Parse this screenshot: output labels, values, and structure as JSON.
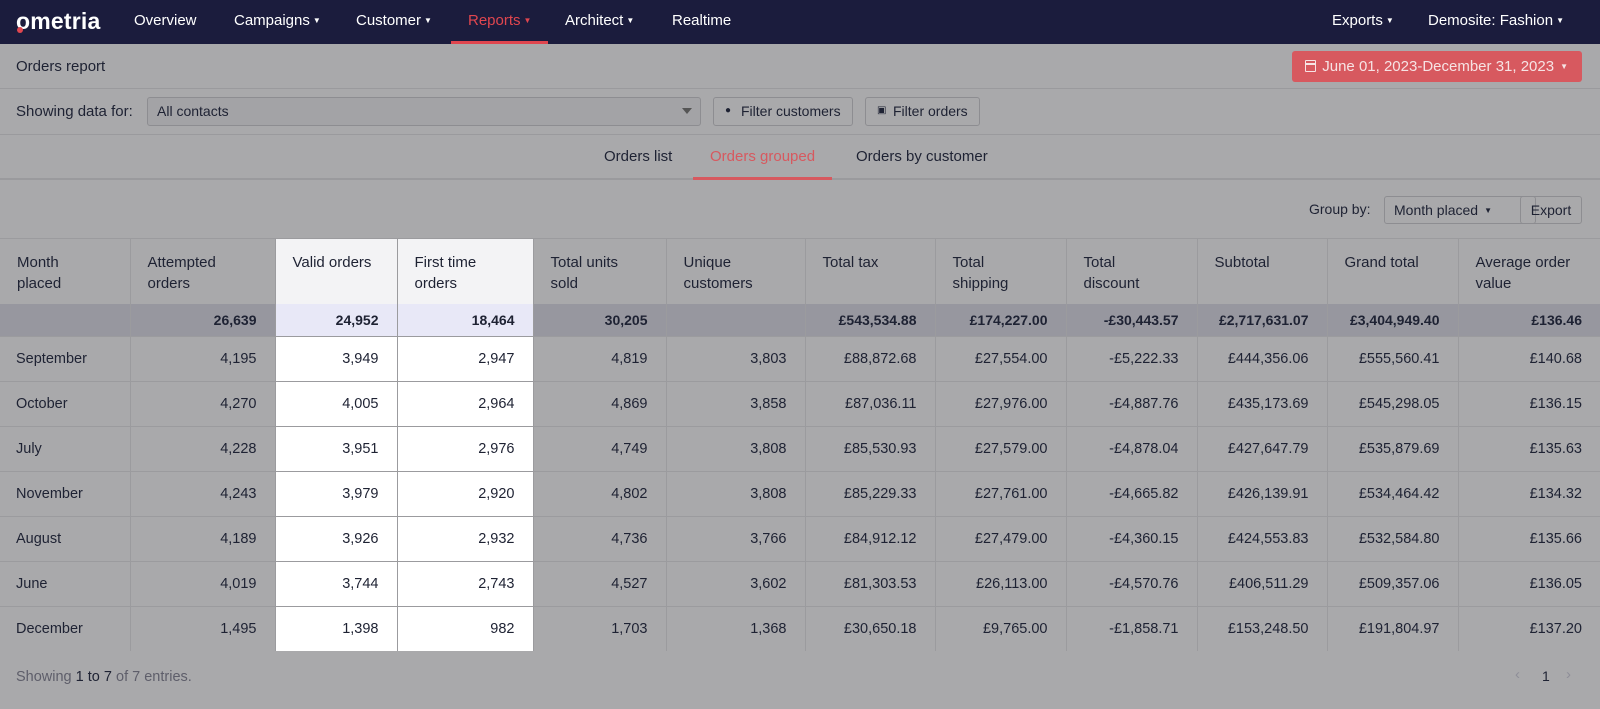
{
  "nav": {
    "logo": "ometria",
    "items": [
      {
        "label": "Overview",
        "caret": false
      },
      {
        "label": "Campaigns",
        "caret": true
      },
      {
        "label": "Customer",
        "caret": true
      },
      {
        "label": "Reports",
        "caret": true,
        "active": true
      },
      {
        "label": "Architect",
        "caret": true
      },
      {
        "label": "Realtime",
        "caret": false
      }
    ],
    "right": [
      {
        "label": "Exports",
        "caret": true
      },
      {
        "label": "Demosite: Fashion",
        "caret": true
      }
    ],
    "accent_color": "#e0464f",
    "background": "#1b1c3d"
  },
  "report": {
    "title": "Orders report",
    "date_range": "June 01, 2023-December 31, 2023"
  },
  "filters": {
    "label": "Showing data for:",
    "contacts_value": "All contacts",
    "filter_customers": "Filter customers",
    "filter_orders": "Filter orders"
  },
  "tabs": [
    {
      "label": "Orders list",
      "active": false
    },
    {
      "label": "Orders grouped",
      "active": true
    },
    {
      "label": "Orders by customer",
      "active": false
    }
  ],
  "toolbar": {
    "group_by_label": "Group by:",
    "group_by_value": "Month placed",
    "export_label": "Export"
  },
  "table": {
    "columns": [
      {
        "line1": "Month",
        "line2": "placed"
      },
      {
        "line1": "Attempted",
        "line2": "orders"
      },
      {
        "line1": "Valid orders",
        "line2": ""
      },
      {
        "line1": "First time",
        "line2": "orders"
      },
      {
        "line1": "Total units",
        "line2": "sold"
      },
      {
        "line1": "Unique",
        "line2": "customers"
      },
      {
        "line1": "Total tax",
        "line2": ""
      },
      {
        "line1": "Total",
        "line2": "shipping"
      },
      {
        "line1": "Total",
        "line2": "discount"
      },
      {
        "line1": "Subtotal",
        "line2": ""
      },
      {
        "line1": "Grand total",
        "line2": ""
      },
      {
        "line1": "Average order",
        "line2": "value"
      }
    ],
    "totals": [
      "",
      "26,639",
      "24,952",
      "18,464",
      "30,205",
      "",
      "£543,534.88",
      "£174,227.00",
      "-£30,443.57",
      "£2,717,631.07",
      "£3,404,949.40",
      "£136.46"
    ],
    "rows": [
      [
        "September",
        "4,195",
        "3,949",
        "2,947",
        "4,819",
        "3,803",
        "£88,872.68",
        "£27,554.00",
        "-£5,222.33",
        "£444,356.06",
        "£555,560.41",
        "£140.68"
      ],
      [
        "October",
        "4,270",
        "4,005",
        "2,964",
        "4,869",
        "3,858",
        "£87,036.11",
        "£27,976.00",
        "-£4,887.76",
        "£435,173.69",
        "£545,298.05",
        "£136.15"
      ],
      [
        "July",
        "4,228",
        "3,951",
        "2,976",
        "4,749",
        "3,808",
        "£85,530.93",
        "£27,579.00",
        "-£4,878.04",
        "£427,647.79",
        "£535,879.69",
        "£135.63"
      ],
      [
        "November",
        "4,243",
        "3,979",
        "2,920",
        "4,802",
        "3,808",
        "£85,229.33",
        "£27,761.00",
        "-£4,665.82",
        "£426,139.91",
        "£534,464.42",
        "£134.32"
      ],
      [
        "August",
        "4,189",
        "3,926",
        "2,932",
        "4,736",
        "3,766",
        "£84,912.12",
        "£27,479.00",
        "-£4,360.15",
        "£424,553.83",
        "£532,584.80",
        "£135.66"
      ],
      [
        "June",
        "4,019",
        "3,744",
        "2,743",
        "4,527",
        "3,602",
        "£81,303.53",
        "£26,113.00",
        "-£4,570.76",
        "£406,511.29",
        "£509,357.06",
        "£136.05"
      ],
      [
        "December",
        "1,495",
        "1,398",
        "982",
        "1,703",
        "1,368",
        "£30,650.18",
        "£9,765.00",
        "-£1,858.71",
        "£153,248.50",
        "£191,804.97",
        "£137.20"
      ]
    ]
  },
  "footer": {
    "showing_prefix": "Showing",
    "from": "1",
    "to_word": "to",
    "to": "7",
    "of_word": "of",
    "total": "7",
    "entries_word": "entries.",
    "current_page": "1",
    "prev_symbol": "‹",
    "next_symbol": "›"
  }
}
